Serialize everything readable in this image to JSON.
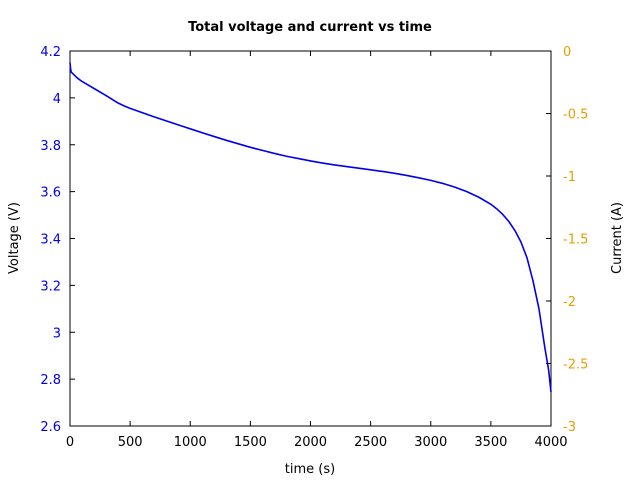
{
  "colors": {
    "voltage": "#0000ee",
    "current": "#e69f00",
    "frame": "#000000"
  },
  "chart_data": {
    "type": "line",
    "title": "Total voltage and current vs time",
    "xlabel": "time (s)",
    "ylabel": "Voltage (V)",
    "y2label": "Current (A)",
    "xlim": [
      0,
      4000
    ],
    "ylim": [
      2.6,
      4.2
    ],
    "y2lim": [
      -3,
      0
    ],
    "xticks": [
      "0",
      "500",
      "1000",
      "1500",
      "2000",
      "2500",
      "3000",
      "3500",
      "4000"
    ],
    "yticks": [
      "2.6",
      "2.8",
      "3",
      "3.2",
      "3.4",
      "3.6",
      "3.8",
      "4",
      "4.2"
    ],
    "y2ticks": [
      "-3",
      "-2.5",
      "-2",
      "-1.5",
      "-1",
      "-0.5",
      "0"
    ],
    "grid": false,
    "series": [
      {
        "axis": "left",
        "x": [
          0,
          5,
          10,
          30,
          60,
          100,
          150,
          200,
          300,
          400,
          450,
          500,
          600,
          700,
          800,
          900,
          1000,
          1100,
          1200,
          1300,
          1400,
          1500,
          1600,
          1700,
          1800,
          1900,
          2000,
          2100,
          2200,
          2300,
          2400,
          2500,
          2600,
          2700,
          2800,
          2900,
          3000,
          3100,
          3200,
          3300,
          3400,
          3500,
          3550,
          3600,
          3650,
          3700,
          3750,
          3800,
          3850,
          3900,
          3950,
          3980,
          4000
        ],
        "y": [
          4.15,
          4.125,
          4.11,
          4.1,
          4.085,
          4.07,
          4.055,
          4.04,
          4.01,
          3.978,
          3.966,
          3.955,
          3.937,
          3.919,
          3.902,
          3.885,
          3.868,
          3.851,
          3.835,
          3.819,
          3.804,
          3.789,
          3.776,
          3.763,
          3.751,
          3.741,
          3.731,
          3.722,
          3.714,
          3.707,
          3.7,
          3.693,
          3.686,
          3.678,
          3.669,
          3.659,
          3.648,
          3.635,
          3.619,
          3.6,
          3.576,
          3.546,
          3.526,
          3.502,
          3.472,
          3.434,
          3.385,
          3.318,
          3.22,
          3.1,
          2.93,
          2.84,
          2.745
        ]
      }
    ]
  }
}
